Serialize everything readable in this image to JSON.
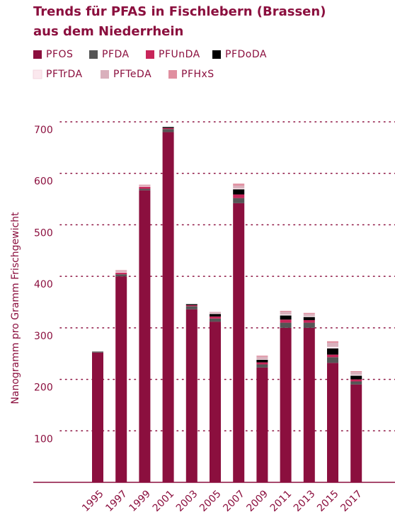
{
  "chart_data": {
    "type": "stacked_bar",
    "title": [
      "Trends für PFAS in Fischlebern (Brassen)",
      "aus dem Niederrhein"
    ],
    "y_label": "Nanogramm pro Gramm Frischgewicht",
    "categories": [
      "1995",
      "1997",
      "1999",
      "2001",
      "2003",
      "2005",
      "2007",
      "2009",
      "2011",
      "2013",
      "2015",
      "2017"
    ],
    "series": [
      {
        "name": "PFOS",
        "color": "#8b0f3e",
        "values": [
          252,
          400,
          567,
          680,
          336,
          312,
          542,
          223,
          300,
          300,
          232,
          190
        ]
      },
      {
        "name": "PFDA",
        "color": "#555555",
        "values": [
          2,
          4,
          3,
          6,
          6,
          6,
          10,
          6,
          10,
          10,
          11,
          6
        ]
      },
      {
        "name": "PFUnDA",
        "color": "#c8255a",
        "values": [
          0,
          3,
          4,
          2,
          2,
          4,
          7,
          4,
          6,
          5,
          5,
          4
        ]
      },
      {
        "name": "PFDoDA",
        "color": "#000000",
        "values": [
          0,
          0,
          0,
          2,
          2,
          5,
          10,
          5,
          8,
          6,
          12,
          7
        ]
      },
      {
        "name": "PFTrDA",
        "color": "#fbe8ee",
        "values": [
          0,
          1,
          1,
          0,
          0,
          1,
          2,
          1,
          2,
          2,
          3,
          2
        ]
      },
      {
        "name": "PFTeDA",
        "color": "#d9b0bc",
        "values": [
          0,
          3,
          2,
          0,
          0,
          3,
          5,
          5,
          5,
          4,
          8,
          5
        ]
      },
      {
        "name": "PFHxS",
        "color": "#e08fa0",
        "values": [
          0,
          1,
          1,
          0,
          0,
          0,
          4,
          2,
          2,
          2,
          3,
          2
        ]
      }
    ],
    "ylim": [
      0,
      700
    ],
    "yticks": [
      100,
      200,
      300,
      400,
      500,
      600,
      700
    ],
    "grid": true
  }
}
